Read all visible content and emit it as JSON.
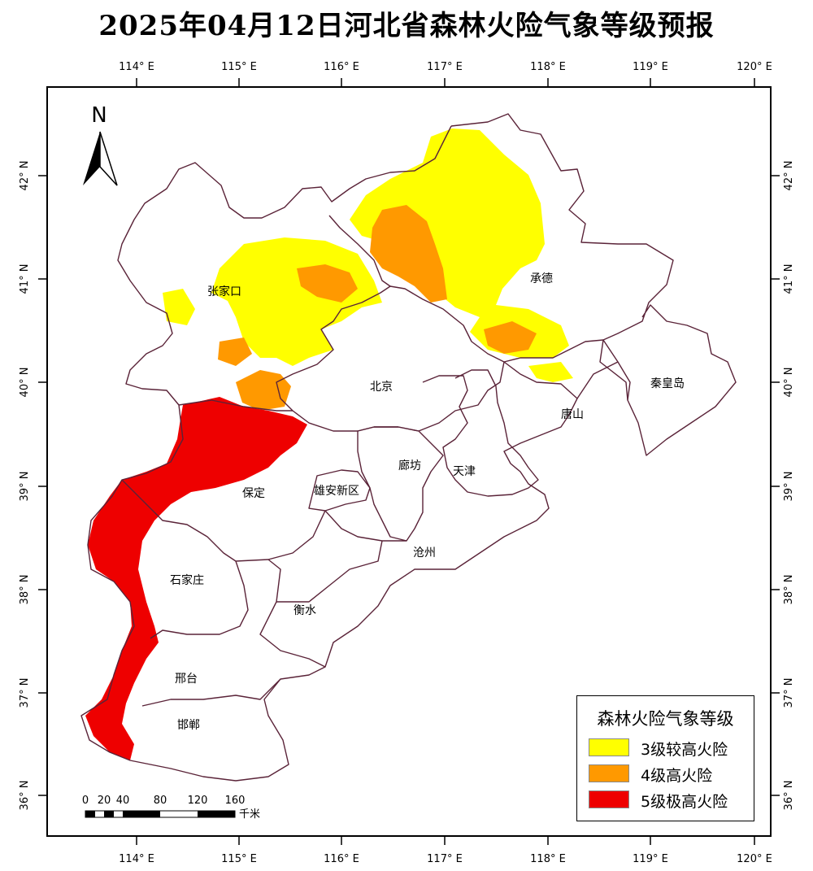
{
  "title": "2025年04月12日河北省森林火险气象等级预报",
  "colors": {
    "level3": "#ffff00",
    "level4": "#ff9900",
    "level5": "#ee0000",
    "boundary": "#5a2338"
  },
  "lon_labels": [
    "114° E",
    "115° E",
    "116° E",
    "117° E",
    "118° E",
    "119° E",
    "120° E"
  ],
  "lat_labels": [
    "42° N",
    "41° N",
    "40° N",
    "39° N",
    "38° N",
    "37° N",
    "36° N"
  ],
  "north_arrow_label": "N",
  "cities": {
    "zhangjiakou": "张家口",
    "chengde": "承德",
    "beijing": "北京",
    "qinhuangdao": "秦皇岛",
    "tangshan": "唐山",
    "langfang": "廊坊",
    "tianjin": "天津",
    "baoding": "保定",
    "xiongan": "雄安新区",
    "cangzhou": "沧州",
    "shijiazhuang": "石家庄",
    "hengshui": "衡水",
    "xingtai": "邢台",
    "handan": "邯郸"
  },
  "scale_bar": {
    "ticks": [
      "0",
      "20",
      "40",
      "80",
      "120",
      "160"
    ],
    "unit": "千米"
  },
  "legend": {
    "title": "森林火险气象等级",
    "items": [
      {
        "label": "3级较高火险",
        "color": "#ffff00"
      },
      {
        "label": "4级高火险",
        "color": "#ff9900"
      },
      {
        "label": "5级极高火险",
        "color": "#ee0000"
      }
    ]
  }
}
